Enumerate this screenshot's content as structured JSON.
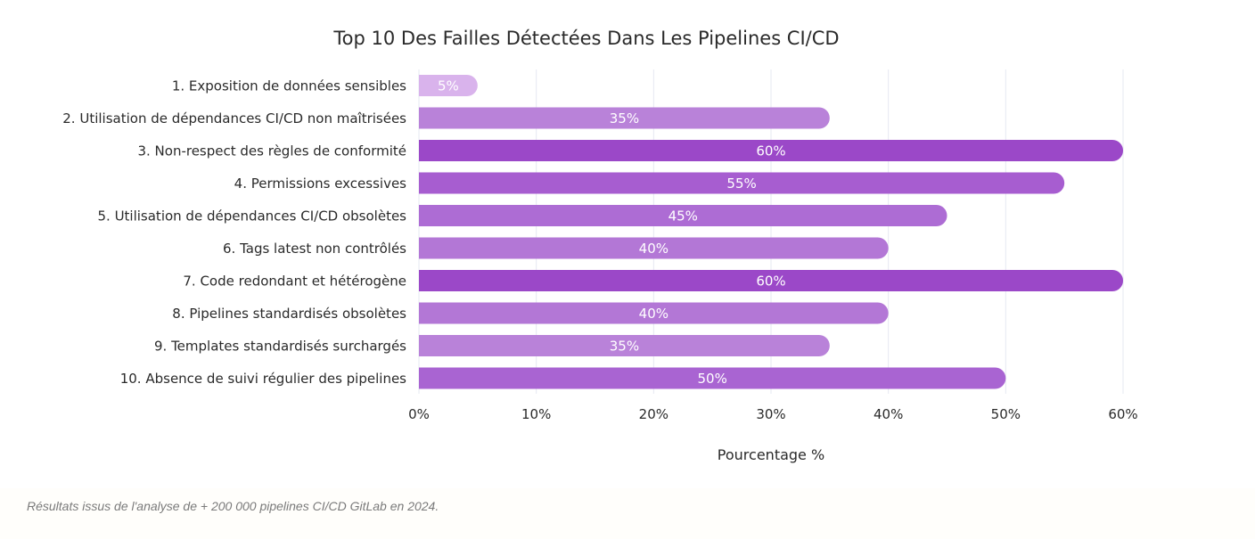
{
  "chart_data": {
    "type": "bar",
    "orientation": "horizontal",
    "title": "Top 10 Des Failles Détectées Dans Les Pipelines CI/CD",
    "xlabel": "Pourcentage %",
    "ylabel": "",
    "xlim": [
      0,
      60
    ],
    "x_ticks": [
      0,
      10,
      20,
      30,
      40,
      50,
      60
    ],
    "tick_suffix": "%",
    "grid": true,
    "categories": [
      "1. Exposition de données sensibles",
      "2. Utilisation de dépendances CI/CD non maîtrisées",
      "3. Non-respect des règles de conformité",
      "4. Permissions excessives",
      "5. Utilisation de dépendances CI/CD obsolètes",
      "6. Tags latest non contrôlés",
      "7. Code redondant et hétérogène",
      "8. Pipelines standardisés obsolètes",
      "9. Templates standardisés surchargés",
      "10. Absence de suivi régulier des pipelines"
    ],
    "values": [
      5,
      35,
      60,
      55,
      45,
      40,
      60,
      40,
      35,
      50
    ],
    "data_labels": [
      "5%",
      "35%",
      "60%",
      "55%",
      "45%",
      "40%",
      "60%",
      "40%",
      "35%",
      "50%"
    ],
    "bar_colors": [
      "#d9b3ec",
      "#b982d9",
      "#9b48c8",
      "#a75dd0",
      "#ad6cd4",
      "#b377d6",
      "#9b48c8",
      "#b377d6",
      "#b982d9",
      "#a964d2"
    ]
  },
  "footnote": "Résultats issus de l'analyse de + 200 000 pipelines CI/CD GitLab en 2024."
}
